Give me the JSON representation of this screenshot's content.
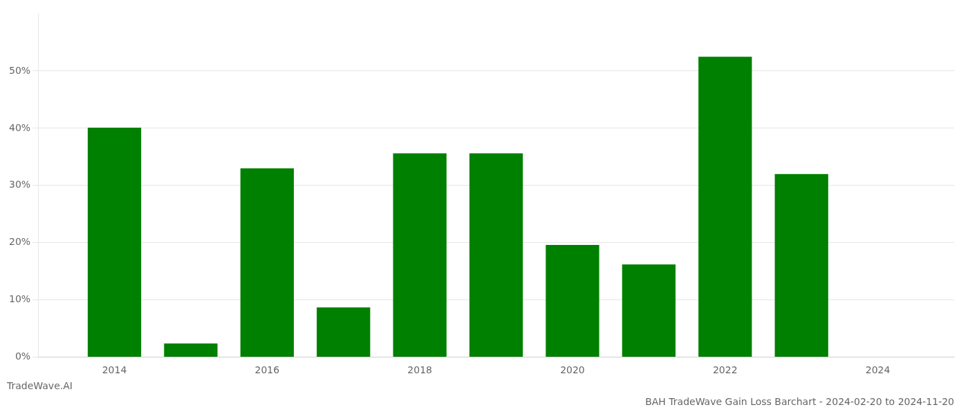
{
  "chart_data": {
    "type": "bar",
    "title": "BAH TradeWave Gain Loss Barchart - 2024-02-20 to 2024-11-20",
    "annotations": [
      "TradeWave.AI"
    ],
    "x": [
      2014,
      2015,
      2016,
      2017,
      2018,
      2019,
      2020,
      2021,
      2022,
      2023,
      2024
    ],
    "values": [
      40.1,
      2.4,
      33.0,
      8.7,
      35.6,
      35.6,
      19.6,
      16.2,
      52.5,
      32.0,
      0.0
    ],
    "color": "#008000",
    "xlim": [
      2013.0,
      2025.0
    ],
    "xticks": [
      2014,
      2016,
      2018,
      2020,
      2022,
      2024
    ],
    "ylim": [
      0,
      60
    ],
    "yticks": [
      {
        "value": 0,
        "label": "0%"
      },
      {
        "value": 10,
        "label": "10%"
      },
      {
        "value": 20,
        "label": "20%"
      },
      {
        "value": 30,
        "label": "30%"
      },
      {
        "value": 40,
        "label": "40%"
      },
      {
        "value": 50,
        "label": "50%"
      }
    ],
    "grid": true
  }
}
